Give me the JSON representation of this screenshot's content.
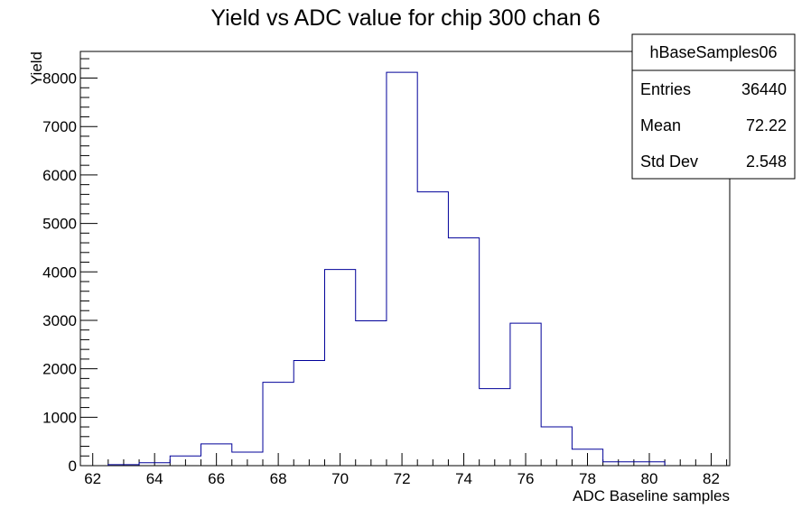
{
  "chart_data": {
    "type": "bar",
    "style": "step-histogram",
    "title": "Yield vs ADC value for chip 300 chan 6",
    "xlabel": "ADC Baseline samples",
    "ylabel": "Yield",
    "xlim": [
      61.6,
      82.6
    ],
    "ylim": [
      0,
      8550
    ],
    "x_ticks": [
      "62",
      "64",
      "66",
      "68",
      "70",
      "72",
      "74",
      "76",
      "78",
      "80",
      "82"
    ],
    "y_ticks": [
      "0",
      "1000",
      "2000",
      "3000",
      "4000",
      "5000",
      "6000",
      "7000",
      "8000"
    ],
    "bin_edges": [
      62.5,
      63.5,
      64.5,
      65.5,
      66.5,
      67.5,
      68.5,
      69.5,
      70.5,
      71.5,
      72.5,
      73.5,
      74.5,
      75.5,
      76.5,
      77.5,
      78.5,
      79.5,
      80.5
    ],
    "values": [
      20,
      60,
      200,
      450,
      280,
      1720,
      2170,
      4050,
      2990,
      8120,
      5650,
      4700,
      1590,
      2940,
      800,
      340,
      80,
      80
    ],
    "line_color": "#000099",
    "grid": false,
    "stats_box": {
      "name": "hBaseSamples06",
      "rows": [
        {
          "label": "Entries",
          "value": "36440"
        },
        {
          "label": "Mean",
          "value": "72.22"
        },
        {
          "label": "Std Dev",
          "value": "2.548"
        }
      ]
    }
  }
}
